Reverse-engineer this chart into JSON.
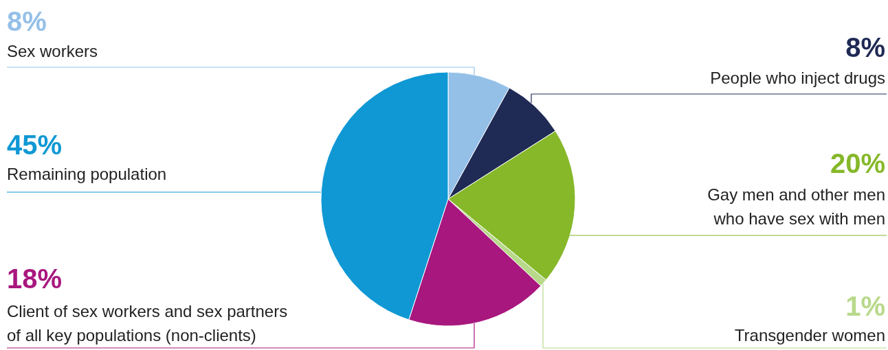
{
  "chart_data": {
    "type": "pie",
    "categories": [
      "Sex workers",
      "People who inject drugs",
      "Gay men and other men who have sex with men",
      "Transgender women",
      "Client of sex workers and sex partners of all key populations (non-clients)",
      "Remaining population"
    ],
    "values": [
      8,
      8,
      20,
      1,
      18,
      45
    ],
    "value_labels": [
      "8%",
      "8%",
      "20%",
      "1%",
      "18%",
      "45%"
    ],
    "colors": [
      "#94c0e8",
      "#1f2a55",
      "#86b82a",
      "#b8d98a",
      "#a8177e",
      "#0f98d4"
    ],
    "legend": false
  }
}
